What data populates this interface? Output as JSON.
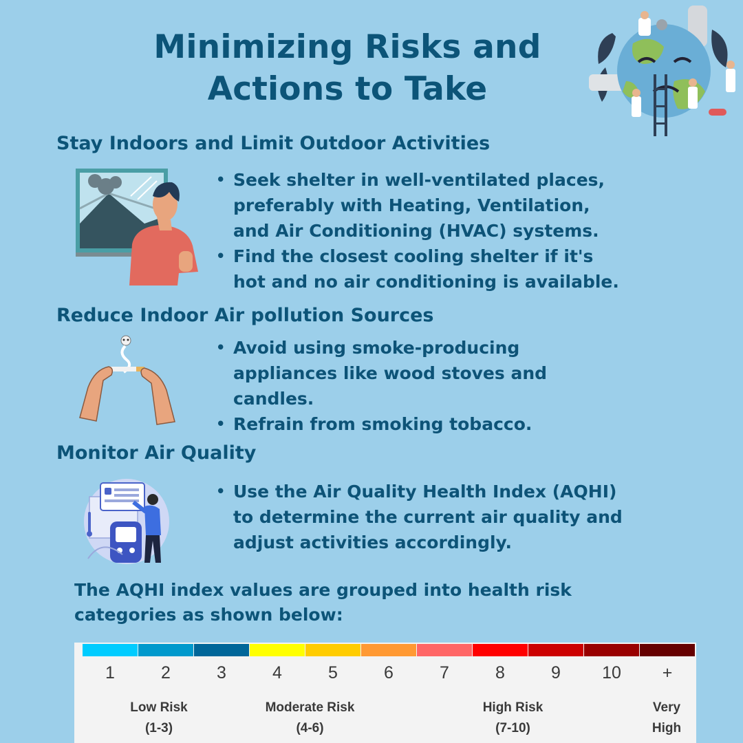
{
  "title_line1": "Minimizing Risks and",
  "title_line2": "Actions to Take",
  "sections": [
    {
      "heading": "Stay Indoors and Limit Outdoor Activities",
      "bullets": [
        {
          "lines": [
            "Seek shelter in well-ventilated places,",
            "preferably with Heating, Ventilation,",
            "and Air Conditioning (HVAC) systems."
          ]
        },
        {
          "lines": [
            "Find the closest cooling shelter if it's",
            "hot and no air conditioning is available."
          ]
        }
      ]
    },
    {
      "heading": "Reduce Indoor Air pollution Sources",
      "bullets": [
        {
          "lines": [
            "Avoid using smoke-producing",
            "appliances like wood stoves and",
            "candles."
          ]
        },
        {
          "lines": [
            "Refrain from smoking tobacco."
          ]
        }
      ]
    },
    {
      "heading": "Monitor Air Quality",
      "bullets": [
        {
          "lines": [
            "Use the Air Quality Health Index (AQHI)",
            "to determine the current air quality and",
            "adjust activities accordingly."
          ]
        }
      ]
    }
  ],
  "intro_line1": "The AQHI index values are grouped into health risk",
  "intro_line2": "categories as shown below:",
  "scale": {
    "values": [
      "1",
      "2",
      "3",
      "4",
      "5",
      "6",
      "7",
      "8",
      "9",
      "10",
      "+"
    ],
    "colors": [
      "#00ccff",
      "#0099cc",
      "#006699",
      "#ffff00",
      "#ffcc00",
      "#ff9933",
      "#ff6666",
      "#ff0000",
      "#cc0000",
      "#990000",
      "#660000"
    ],
    "categories": [
      {
        "line1": "Low Risk",
        "line2": "(1-3)"
      },
      {
        "line1": "Moderate Risk",
        "line2": "(4-6)"
      },
      {
        "line1": "High Risk",
        "line2": "(7-10)"
      },
      {
        "line1": "Very",
        "line2": "High"
      }
    ]
  },
  "colors": {
    "background": "#9ccfea",
    "heading": "#0c5478"
  }
}
